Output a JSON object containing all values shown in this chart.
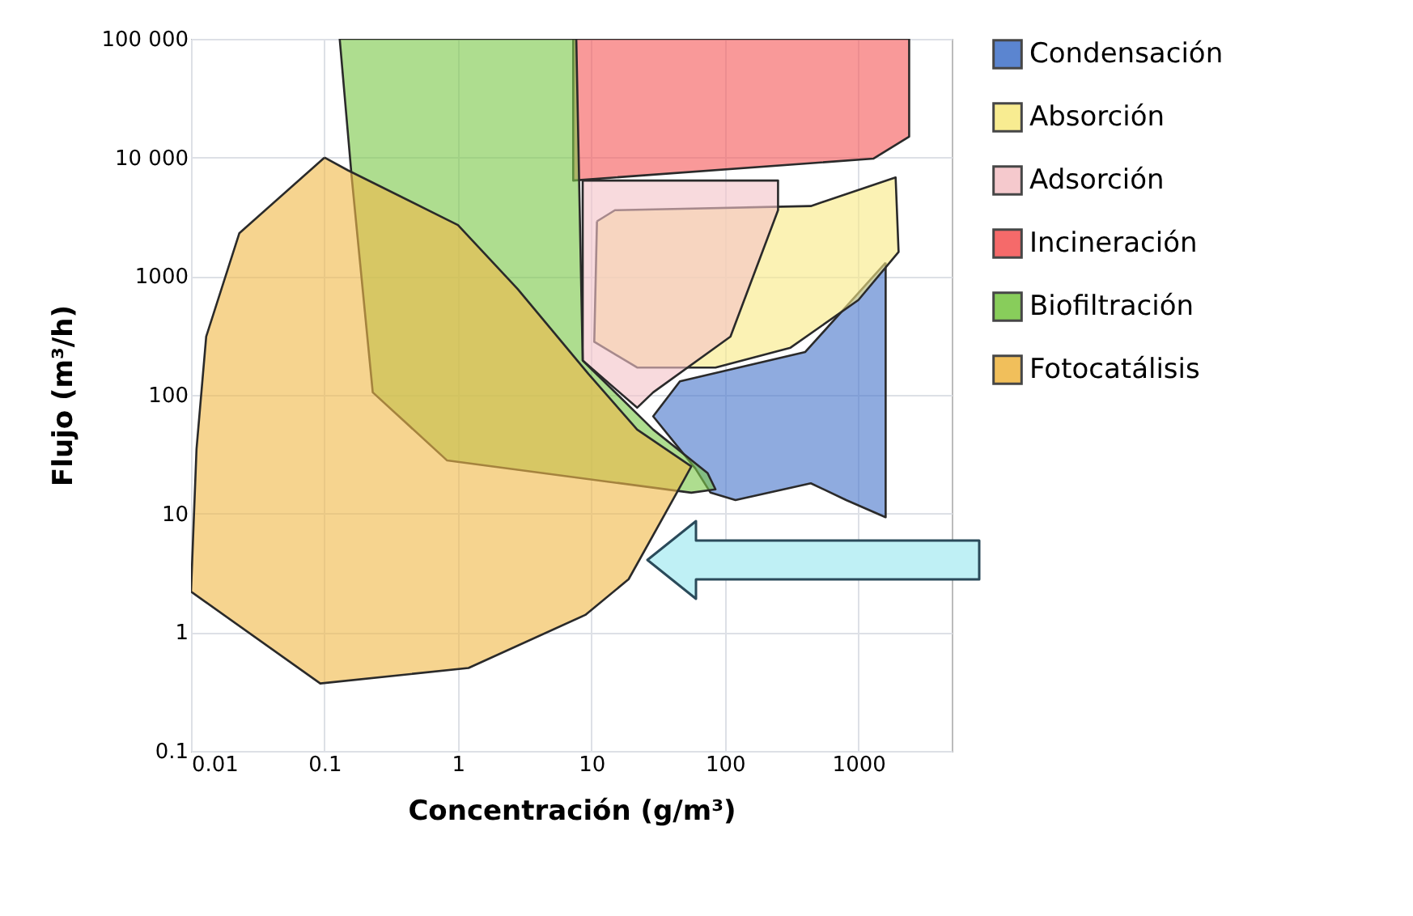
{
  "chart_data": {
    "type": "area",
    "xlabel": "Concentración (g/m³)",
    "ylabel": "Flujo (m³/h)",
    "log": "xy",
    "grid": true,
    "legend": "top right",
    "xlim": [
      0.01,
      5000
    ],
    "ylim": [
      0.1,
      100000
    ],
    "xticks": [
      0.01,
      0.1,
      1,
      10,
      100,
      1000
    ],
    "yticks": [
      {
        "value": 100000,
        "label": "100 000"
      },
      {
        "value": 10000,
        "label": "10 000"
      },
      1000,
      100,
      10,
      1,
      0.1
    ],
    "series": [
      {
        "name": "Condensación",
        "color": "#4a78cc",
        "x": [
          1600,
          1600,
          810,
          440,
          120,
          78,
          60,
          29,
          46,
          400
        ],
        "values": [
          1300,
          9.3,
          13,
          18,
          13,
          15,
          24,
          66,
          130,
          230
        ]
      },
      {
        "name": "Absorción",
        "color": "#f8ea86",
        "x": [
          11,
          15,
          440,
          1900,
          2000,
          1000,
          310,
          85,
          22,
          10.5
        ],
        "values": [
          2900,
          3600,
          3900,
          6800,
          1600,
          630,
          250,
          170,
          170,
          280
        ]
      },
      {
        "name": "Adsorción",
        "color": "#f4c4c8",
        "x": [
          8.6,
          250,
          250,
          110,
          29,
          22,
          8.6
        ],
        "values": [
          6400,
          6400,
          3600,
          310,
          105,
          78,
          195
        ]
      },
      {
        "name": "Incineración",
        "color": "#f55a5a",
        "x": [
          7.3,
          2400,
          2400,
          1300,
          7.3
        ],
        "values": [
          100000,
          100000,
          15000,
          9800,
          6400
        ]
      },
      {
        "name": "Biofiltración",
        "color": "#7cc84a",
        "x": [
          0.13,
          7.7,
          8.6,
          29,
          74,
          85,
          56,
          0.83,
          0.23,
          0.16
        ],
        "values": [
          100000,
          100000,
          195,
          51,
          22,
          16,
          15,
          28,
          105,
          6800
        ]
      },
      {
        "name": "Fotocatálisis",
        "color": "#f0b94a",
        "x": [
          0.1,
          0.023,
          0.013,
          0.011,
          0.01,
          0.093,
          1.2,
          9,
          19,
          49,
          56,
          22,
          9.5,
          2.8,
          1.0,
          0.15
        ],
        "values": [
          10000,
          2300,
          310,
          35,
          2.2,
          0.37,
          0.5,
          1.4,
          2.8,
          19,
          25,
          51,
          150,
          780,
          2700,
          7800
        ]
      }
    ]
  }
}
